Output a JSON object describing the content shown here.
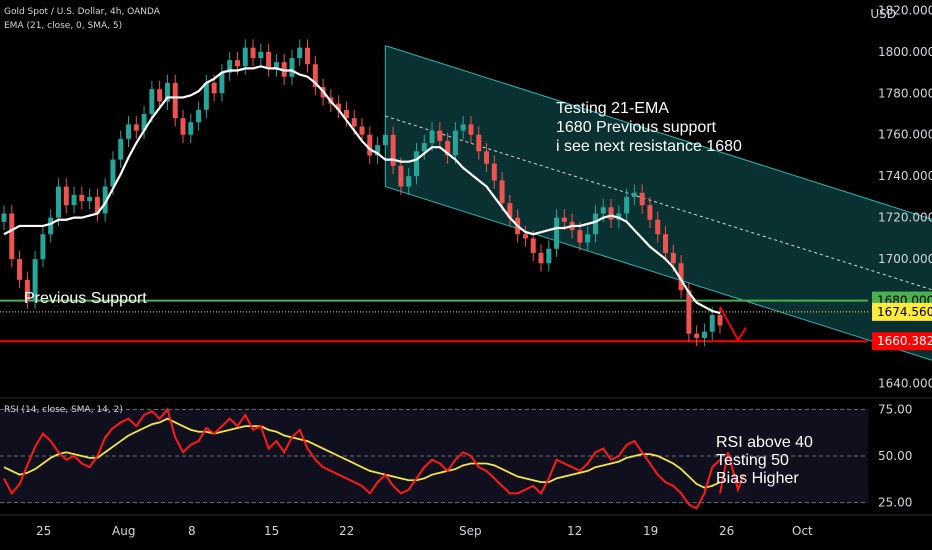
{
  "header": {
    "symbol_line": "Gold Spot / U.S. Dollar, 4h, OANDA",
    "ema_line": "EMA (21, close, 0, SMA, 5)",
    "rsi_line": "RSI (14, close, SMA, 14, 2)",
    "currency": "USD"
  },
  "chart_data": {
    "type": "line",
    "price_panel": {
      "ylim": [
        1633,
        1825
      ],
      "yticks": [
        "1820.000",
        "1800.000",
        "1780.000",
        "1760.000",
        "1740.000",
        "1720.000",
        "1700.000",
        "1640.000"
      ],
      "ytick_values": [
        1820,
        1800,
        1780,
        1760,
        1740,
        1720,
        1700,
        1640
      ],
      "candles_close": [
        1722,
        1700,
        1690,
        1680,
        1700,
        1712,
        1720,
        1735,
        1726,
        1731,
        1728,
        1730,
        1722,
        1735,
        1748,
        1758,
        1765,
        1762,
        1770,
        1782,
        1776,
        1785,
        1768,
        1760,
        1766,
        1772,
        1785,
        1780,
        1790,
        1796,
        1793,
        1802,
        1797,
        1800,
        1792,
        1795,
        1788,
        1797,
        1802,
        1794,
        1783,
        1778,
        1775,
        1772,
        1768,
        1764,
        1760,
        1750,
        1755,
        1760,
        1745,
        1735,
        1740,
        1752,
        1756,
        1762,
        1757,
        1750,
        1762,
        1765,
        1760,
        1752,
        1746,
        1738,
        1727,
        1720,
        1712,
        1710,
        1703,
        1698,
        1705,
        1720,
        1718,
        1714,
        1708,
        1712,
        1722,
        1725,
        1719,
        1722,
        1730,
        1732,
        1726,
        1719,
        1712,
        1703,
        1698,
        1685,
        1664,
        1662,
        1665,
        1673,
        1668
      ],
      "ema21": [
        1712,
        1714,
        1716,
        1716,
        1716,
        1716,
        1717,
        1719,
        1719,
        1720,
        1720,
        1721,
        1722,
        1727,
        1734,
        1741,
        1749,
        1756,
        1762,
        1768,
        1773,
        1778,
        1778,
        1778,
        1779,
        1781,
        1785,
        1787,
        1790,
        1791,
        1791,
        1792,
        1792,
        1793,
        1792,
        1792,
        1791,
        1791,
        1789,
        1788,
        1785,
        1781,
        1776,
        1772,
        1767,
        1762,
        1757,
        1753,
        1751,
        1748,
        1748,
        1747,
        1747,
        1748,
        1751,
        1754,
        1754,
        1751,
        1748,
        1744,
        1741,
        1738,
        1735,
        1730,
        1725,
        1720,
        1716,
        1713,
        1712,
        1713,
        1714,
        1715,
        1715,
        1716,
        1716,
        1717,
        1718,
        1720,
        1721,
        1720,
        1718,
        1714,
        1710,
        1706,
        1703,
        1700,
        1696,
        1690,
        1684,
        1679,
        1677,
        1675,
        1674
      ],
      "horizontal_levels": [
        {
          "label": "1680.000",
          "value": 1680.0,
          "color": "#4caf50"
        },
        {
          "label": "1674.560",
          "value": 1674.56,
          "color": "#ffeb3b"
        },
        {
          "label": "1660.382",
          "value": 1660.382,
          "color": "#ff0000"
        }
      ],
      "channel": {
        "start_index": 49,
        "end_index": 132,
        "upper": [
          1803,
          1704
        ],
        "lower": [
          1735,
          1636
        ],
        "mid": [
          1769,
          1670
        ]
      },
      "annotations": [
        {
          "lines": [
            "Testing 21-EMA",
            "1680 Previous support",
            "i see next resistance 1680"
          ]
        },
        {
          "lines": [
            "Previous Support"
          ]
        }
      ]
    },
    "rsi_panel": {
      "ylim": [
        20,
        80
      ],
      "yticks": [
        "75.00",
        "50.00",
        "25.00"
      ],
      "ytick_values": [
        75,
        50,
        25
      ],
      "rsi": [
        38,
        30,
        35,
        45,
        55,
        62,
        58,
        52,
        48,
        50,
        46,
        44,
        50,
        60,
        65,
        68,
        70,
        66,
        72,
        74,
        70,
        75,
        60,
        52,
        56,
        58,
        65,
        62,
        66,
        70,
        66,
        72,
        64,
        66,
        54,
        58,
        52,
        60,
        64,
        54,
        48,
        44,
        42,
        40,
        38,
        36,
        34,
        30,
        36,
        40,
        34,
        30,
        32,
        38,
        44,
        48,
        46,
        42,
        48,
        52,
        50,
        44,
        42,
        38,
        34,
        30,
        30,
        32,
        34,
        30,
        38,
        48,
        46,
        44,
        42,
        46,
        52,
        54,
        48,
        50,
        56,
        58,
        52,
        46,
        40,
        36,
        34,
        30,
        24,
        22,
        30,
        44,
        48
      ],
      "rsi_ma": [
        44,
        42,
        40,
        41,
        43,
        46,
        49,
        51,
        52,
        51,
        50,
        49,
        49,
        52,
        55,
        58,
        61,
        63,
        65,
        67,
        68,
        70,
        68,
        66,
        64,
        63,
        63,
        62,
        63,
        64,
        65,
        66,
        66,
        66,
        64,
        63,
        61,
        60,
        59,
        58,
        56,
        54,
        52,
        50,
        48,
        46,
        44,
        42,
        41,
        40,
        39,
        38,
        37,
        37,
        38,
        40,
        41,
        42,
        43,
        45,
        46,
        46,
        46,
        45,
        43,
        41,
        39,
        38,
        37,
        36,
        36,
        38,
        39,
        40,
        41,
        42,
        44,
        45,
        46,
        47,
        49,
        50,
        51,
        51,
        50,
        48,
        46,
        43,
        39,
        35,
        33,
        34,
        36
      ],
      "annotation": [
        "RSI above 40",
        "Testing 50",
        "Bias Higher"
      ]
    },
    "xticks": [
      "25",
      "Aug",
      "8",
      "15",
      "22",
      "Sep",
      "12",
      "19",
      "26",
      "Oct"
    ]
  },
  "colors": {
    "up": "#26a69a",
    "down": "#ef5350",
    "ema": "#ffffff",
    "channel_fill": "#0c3a3a",
    "channel_line": "#2ab7b7",
    "rsi": "#ff1a1a",
    "rsi_ma": "#f5e642",
    "green": "#4caf50",
    "red": "#ff0000",
    "yellow": "#ffeb3b"
  }
}
